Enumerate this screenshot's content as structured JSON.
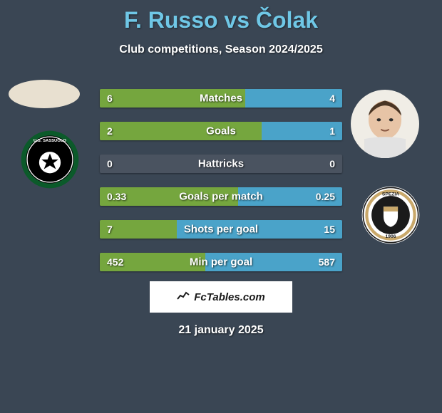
{
  "title_parts": {
    "player1": "F. Russo",
    "vs": " vs ",
    "player2": "Čolak"
  },
  "subtitle": "Club competitions, Season 2024/2025",
  "colors": {
    "background": "#3a4654",
    "title": "#6fc7e6",
    "bar_track": "#4a5360",
    "left_bar": "#75a63e",
    "right_bar": "#4aa3c9",
    "badge_bg": "#ffffff"
  },
  "stats": [
    {
      "label": "Matches",
      "left_val": "6",
      "right_val": "4",
      "left_pct": 60,
      "right_pct": 40
    },
    {
      "label": "Goals",
      "left_val": "2",
      "right_val": "1",
      "left_pct": 66.7,
      "right_pct": 33.3
    },
    {
      "label": "Hattricks",
      "left_val": "0",
      "right_val": "0",
      "left_pct": 0,
      "right_pct": 0
    },
    {
      "label": "Goals per match",
      "left_val": "0.33",
      "right_val": "0.25",
      "left_pct": 57,
      "right_pct": 43
    },
    {
      "label": "Shots per goal",
      "left_val": "7",
      "right_val": "15",
      "left_pct": 31.8,
      "right_pct": 68.2
    },
    {
      "label": "Min per goal",
      "left_val": "452",
      "right_val": "587",
      "left_pct": 43.5,
      "right_pct": 56.5
    }
  ],
  "footer": {
    "brand": "FcTables.com",
    "date": "21 january 2025"
  },
  "clubs": {
    "left": {
      "name": "U.S. Sassuolo",
      "ring_color": "#0b5a2a",
      "inner_color": "#000000",
      "accent": "#ffffff"
    },
    "right": {
      "name": "Spezia 1906",
      "ring_color": "#c9a86a",
      "inner_color": "#1a1a1a",
      "accent": "#ffffff"
    }
  }
}
